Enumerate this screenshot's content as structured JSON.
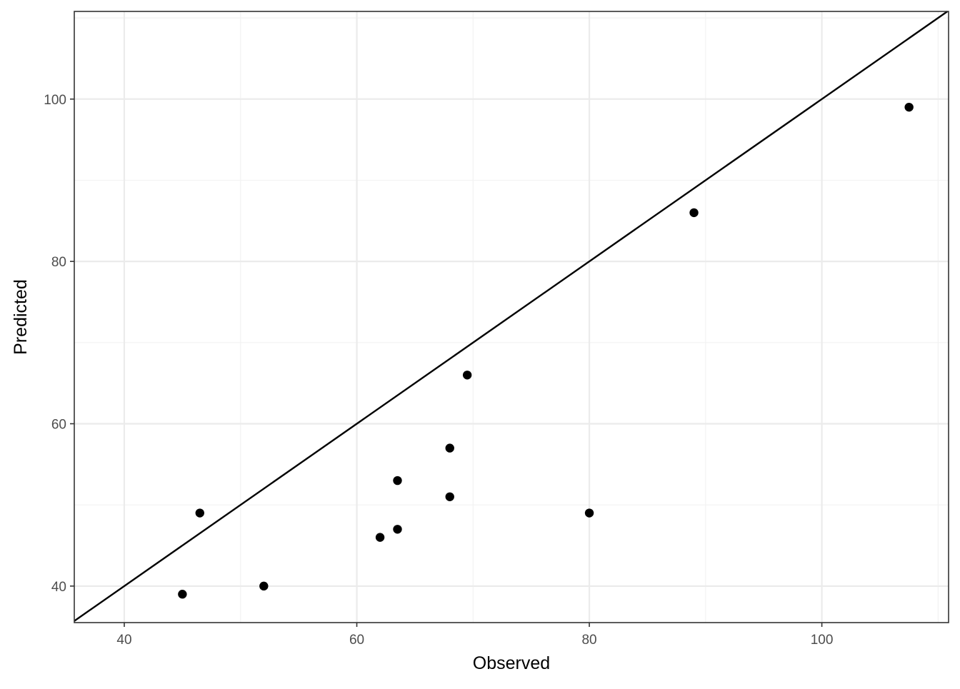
{
  "chart_data": {
    "type": "scatter",
    "title": "",
    "xlabel": "Observed",
    "ylabel": "Predicted",
    "xlim": [
      35.7,
      110.9
    ],
    "ylim": [
      35.5,
      110.8
    ],
    "x_ticks": [
      40,
      60,
      80,
      100
    ],
    "y_ticks": [
      40,
      60,
      80,
      100
    ],
    "x_minor_ticks": [
      50,
      70,
      90,
      110
    ],
    "y_minor_ticks": [
      50,
      70,
      90,
      110
    ],
    "grid": true,
    "reference_line": {
      "type": "identity",
      "slope": 1,
      "intercept": 0,
      "color": "#000000"
    },
    "point_color": "#000000",
    "points": [
      {
        "x": 45.0,
        "y": 39.0
      },
      {
        "x": 46.5,
        "y": 49.0
      },
      {
        "x": 52.0,
        "y": 40.0
      },
      {
        "x": 62.0,
        "y": 46.0
      },
      {
        "x": 63.5,
        "y": 47.0
      },
      {
        "x": 63.5,
        "y": 53.0
      },
      {
        "x": 68.0,
        "y": 51.0
      },
      {
        "x": 68.0,
        "y": 57.0
      },
      {
        "x": 69.5,
        "y": 66.0
      },
      {
        "x": 80.0,
        "y": 49.0
      },
      {
        "x": 89.0,
        "y": 86.0
      },
      {
        "x": 107.5,
        "y": 99.0
      }
    ]
  }
}
